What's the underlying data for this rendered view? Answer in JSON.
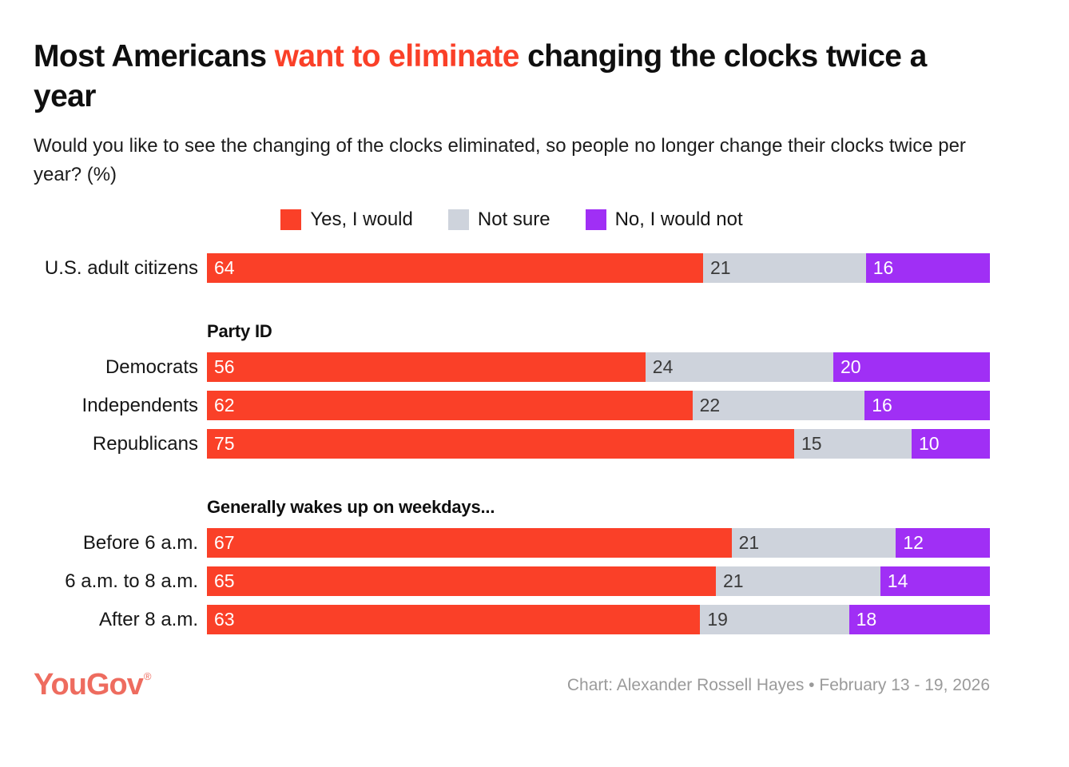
{
  "title": {
    "pre": "Most Americans ",
    "highlight": "want to eliminate",
    "post": " changing the clocks twice a year"
  },
  "subtitle": "Would you like to see the changing of the clocks eliminated, so people no longer change their clocks twice per year? (%)",
  "legend": [
    {
      "label": "Yes, I would",
      "color": "#fa4028"
    },
    {
      "label": "Not sure",
      "color": "#ced3dc"
    },
    {
      "label": "No, I would not",
      "color": "#a02ff5"
    }
  ],
  "chart_data": {
    "type": "bar",
    "orientation": "horizontal",
    "stacked": true,
    "normalized_to_100": true,
    "series_names": [
      "Yes, I would",
      "Not sure",
      "No, I would not"
    ],
    "series_colors": [
      "#fa4028",
      "#ced3dc",
      "#a02ff5"
    ],
    "groups": [
      {
        "header": "",
        "rows": [
          {
            "label": "U.S. adult citizens",
            "values": [
              64,
              21,
              16
            ]
          }
        ]
      },
      {
        "header": "Party ID",
        "rows": [
          {
            "label": "Democrats",
            "values": [
              56,
              24,
              20
            ]
          },
          {
            "label": "Independents",
            "values": [
              62,
              22,
              16
            ]
          },
          {
            "label": "Republicans",
            "values": [
              75,
              15,
              10
            ]
          }
        ]
      },
      {
        "header": "Generally wakes up on weekdays...",
        "rows": [
          {
            "label": "Before 6 a.m.",
            "values": [
              67,
              21,
              12
            ]
          },
          {
            "label": "6 a.m. to 8 a.m.",
            "values": [
              65,
              21,
              14
            ]
          },
          {
            "label": "After 8 a.m.",
            "values": [
              63,
              19,
              18
            ]
          }
        ]
      }
    ]
  },
  "colors": {
    "accent_red": "#fa4028",
    "not_sure_gray": "#ced3dc",
    "no_purple": "#a02ff5",
    "value_light": "#ffffff",
    "value_dark": "#3a3a3a",
    "logo_coral": "#ee6c5f",
    "credit_gray": "#9a9a9a"
  },
  "footer": {
    "logo": "YouGov",
    "logo_reg": "®",
    "credit": "Chart: Alexander Rossell Hayes • February 13 - 19, 2026"
  }
}
